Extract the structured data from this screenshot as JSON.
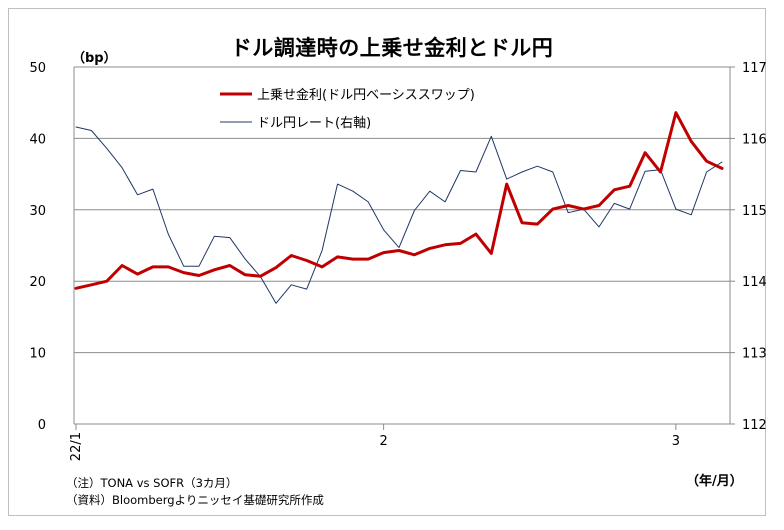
{
  "chart_data": {
    "type": "line",
    "title": "ドル調達時の上乗せ金利とドル円",
    "y_left_unit": "（bp）",
    "x_unit": "（年/月）",
    "y_left": {
      "lim": [
        0,
        50
      ],
      "ticks": [
        0,
        10,
        20,
        30,
        40,
        50
      ]
    },
    "y_right": {
      "lim": [
        112,
        117
      ],
      "ticks": [
        112,
        113,
        114,
        115,
        116,
        117
      ]
    },
    "x_ticks": [
      {
        "label": "22/1",
        "index": 0,
        "rotated": true
      },
      {
        "label": "2",
        "index": 20,
        "rotated": false
      },
      {
        "label": "3",
        "index": 39,
        "rotated": false
      }
    ],
    "x_count": 43,
    "grid": true,
    "legend_position": "top-left",
    "series": [
      {
        "name": "上乗せ金利(ドル円ベーシススワップ)",
        "axis": "left",
        "color": "#c00000",
        "width": 3,
        "values": [
          19.0,
          19.5,
          20.0,
          22.2,
          21.0,
          22.0,
          22.0,
          21.2,
          20.8,
          21.6,
          22.2,
          20.9,
          20.7,
          21.9,
          23.6,
          22.9,
          22.0,
          23.4,
          23.1,
          23.1,
          24.0,
          24.3,
          23.7,
          24.6,
          25.1,
          25.3,
          26.6,
          23.9,
          33.6,
          28.2,
          28.0,
          30.1,
          30.6,
          30.1,
          30.6,
          32.8,
          33.3,
          38.0,
          35.3,
          43.6,
          39.6,
          36.8,
          35.8
        ]
      },
      {
        "name": "ドル円レート(右軸)",
        "axis": "right",
        "color": "#1f3864",
        "width": 1,
        "values": [
          116.16,
          116.11,
          115.86,
          115.59,
          115.21,
          115.29,
          114.66,
          114.21,
          114.21,
          114.63,
          114.61,
          114.31,
          114.06,
          113.69,
          113.95,
          113.89,
          114.43,
          115.36,
          115.26,
          115.11,
          114.72,
          114.47,
          114.99,
          115.26,
          115.11,
          115.55,
          115.53,
          116.03,
          115.43,
          115.53,
          115.61,
          115.53,
          114.96,
          115.01,
          114.76,
          115.09,
          115.01,
          115.54,
          115.56,
          115.01,
          114.93,
          115.53,
          115.67
        ]
      }
    ]
  },
  "notes": {
    "note1": "（注）TONA vs SOFR（3カ月）",
    "note2": "（資料）Bloombergよりニッセイ基礎研究所作成"
  }
}
